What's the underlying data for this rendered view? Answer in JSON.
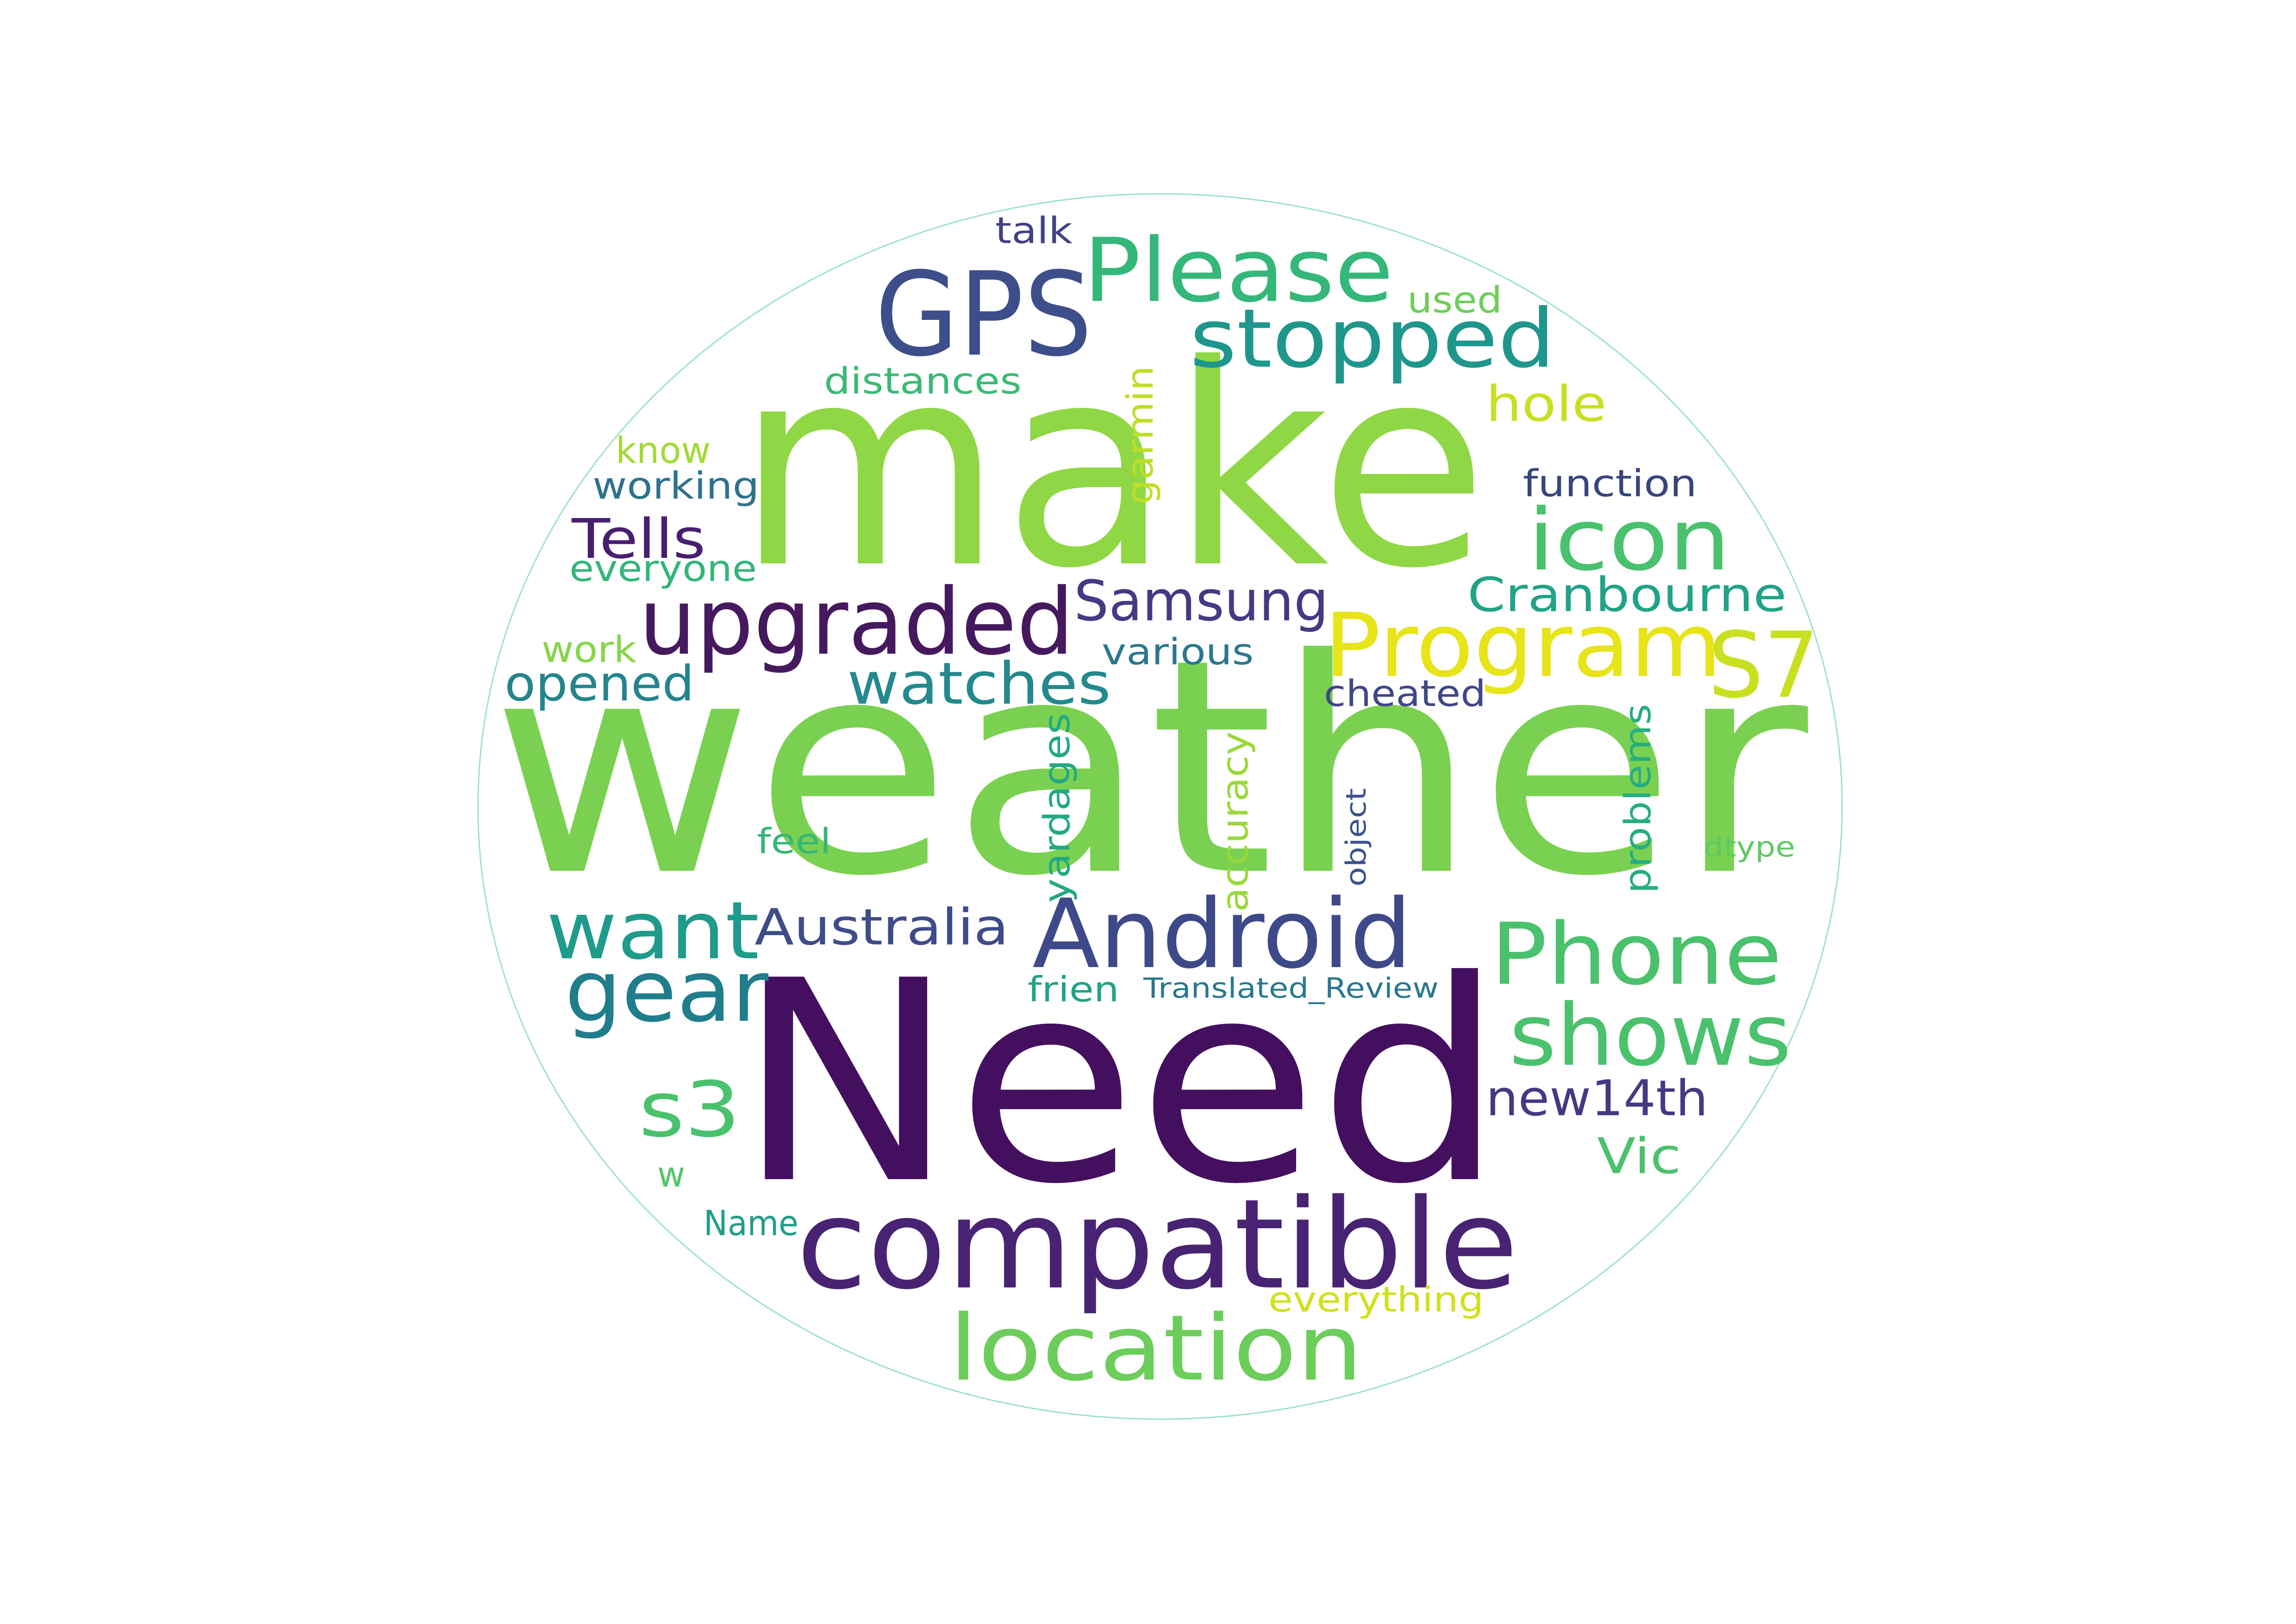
{
  "words": [
    {
      "text": "weather",
      "color": "#7ad151"
    },
    {
      "text": "make",
      "color": "#8fd744"
    },
    {
      "text": "Need",
      "color": "#440f5e"
    },
    {
      "text": "compatible",
      "color": "#482374"
    },
    {
      "text": "location",
      "color": "#6ccd5a"
    },
    {
      "text": "Android",
      "color": "#3e4989"
    },
    {
      "text": "GPS",
      "color": "#3d4e8a"
    },
    {
      "text": "Please",
      "color": "#35b779"
    },
    {
      "text": "stopped",
      "color": "#1f968b"
    },
    {
      "text": "upgraded",
      "color": "#46195f"
    },
    {
      "text": "Program",
      "color": "#e7e419"
    },
    {
      "text": "icon",
      "color": "#4ac16d"
    },
    {
      "text": "Phone",
      "color": "#4ac16d"
    },
    {
      "text": "shows",
      "color": "#4ac16d"
    },
    {
      "text": "S7",
      "color": "#c8e020"
    },
    {
      "text": "gear",
      "color": "#1f7d8c"
    },
    {
      "text": "want",
      "color": "#1e9b8a"
    },
    {
      "text": "s3",
      "color": "#4ac16d"
    },
    {
      "text": "watches",
      "color": "#23898e"
    },
    {
      "text": "Samsung",
      "color": "#443a83"
    },
    {
      "text": "Australia",
      "color": "#3e4c8a"
    },
    {
      "text": "Cranbourne",
      "color": "#20a386"
    },
    {
      "text": "Tells",
      "color": "#481f70"
    },
    {
      "text": "opened",
      "color": "#25848e"
    },
    {
      "text": "new14th",
      "color": "#443983"
    },
    {
      "text": "hole",
      "color": "#c8e020"
    },
    {
      "text": "Vic",
      "color": "#4ac16d"
    },
    {
      "text": "function",
      "color": "#38447d"
    },
    {
      "text": "working",
      "color": "#2c728e"
    },
    {
      "text": "know",
      "color": "#a2da37"
    },
    {
      "text": "everyone",
      "color": "#32b67a"
    },
    {
      "text": "work",
      "color": "#86d549"
    },
    {
      "text": "various",
      "color": "#2a788e"
    },
    {
      "text": "cheated",
      "color": "#404688"
    },
    {
      "text": "distances",
      "color": "#3aba76"
    },
    {
      "text": "talk",
      "color": "#424186"
    },
    {
      "text": "used",
      "color": "#6ece58"
    },
    {
      "text": "garmin",
      "color": "#bddf26"
    },
    {
      "text": "yardages",
      "color": "#22a884"
    },
    {
      "text": "accuracy",
      "color": "#99d83b"
    },
    {
      "text": "problems",
      "color": "#26ad81"
    },
    {
      "text": "object",
      "color": "#3b528b"
    },
    {
      "text": "dtype",
      "color": "#5ec962"
    },
    {
      "text": "feel",
      "color": "#35b779"
    },
    {
      "text": "frien",
      "color": "#20a386"
    },
    {
      "text": "Translated_Review",
      "color": "#2a788e"
    },
    {
      "text": "w",
      "color": "#52c569"
    },
    {
      "text": "Name",
      "color": "#1f9e89"
    },
    {
      "text": "everything",
      "color": "#d0e11c"
    }
  ]
}
